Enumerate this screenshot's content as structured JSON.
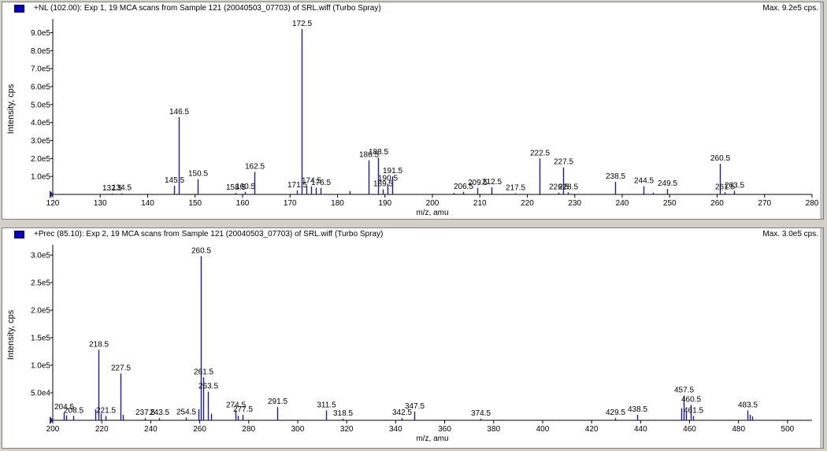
{
  "chart_data": [
    {
      "type": "bar",
      "title": "+NL (102.00): Exp 1, 19 MCA scans from Sample 121 (20040503_07703) of SRL.wiff (Turbo Spray)",
      "max_label": "Max. 9.2e5 cps.",
      "xlabel": "m/z, amu",
      "ylabel": "Intensity, cps",
      "xlim": [
        120,
        280
      ],
      "ylim": [
        0,
        950000
      ],
      "xticks": [
        120,
        130,
        140,
        150,
        160,
        170,
        180,
        190,
        200,
        210,
        220,
        230,
        240,
        250,
        260,
        270,
        280
      ],
      "yticks": [
        {
          "value": 100000,
          "label": "1.0e5"
        },
        {
          "value": 200000,
          "label": "2.0e5"
        },
        {
          "value": 300000,
          "label": "3.0e5"
        },
        {
          "value": 400000,
          "label": "4.0e5"
        },
        {
          "value": 500000,
          "label": "5.0e5"
        },
        {
          "value": 600000,
          "label": "6.0e5"
        },
        {
          "value": 700000,
          "label": "7.0e5"
        },
        {
          "value": 800000,
          "label": "8.0e5"
        },
        {
          "value": 900000,
          "label": "9.0e5"
        }
      ],
      "peaks": [
        {
          "x": 132.5,
          "y": 5000,
          "label": "132.5"
        },
        {
          "x": 134.5,
          "y": 6000,
          "label": "134.5"
        },
        {
          "x": 145.5,
          "y": 48000,
          "label": "145.5"
        },
        {
          "x": 146.5,
          "y": 430000,
          "label": "146.5"
        },
        {
          "x": 150.5,
          "y": 85000,
          "label": "150.5"
        },
        {
          "x": 158.5,
          "y": 8000,
          "label": "158.5"
        },
        {
          "x": 160.5,
          "y": 14000,
          "label": "160.5"
        },
        {
          "x": 162.5,
          "y": 125000,
          "label": "162.5"
        },
        {
          "x": 171.5,
          "y": 22000,
          "label": "171.5"
        },
        {
          "x": 172.5,
          "y": 920000,
          "label": "172.5"
        },
        {
          "x": 173.5,
          "y": 45000,
          "label": ""
        },
        {
          "x": 174.5,
          "y": 45000,
          "label": "174.5"
        },
        {
          "x": 175.5,
          "y": 38000,
          "label": ""
        },
        {
          "x": 176.5,
          "y": 36000,
          "label": "176.5"
        },
        {
          "x": 182.5,
          "y": 18000,
          "label": ""
        },
        {
          "x": 186.5,
          "y": 190000,
          "label": "186.5"
        },
        {
          "x": 188.5,
          "y": 205000,
          "label": "188.5"
        },
        {
          "x": 189.5,
          "y": 28000,
          "label": "189.5"
        },
        {
          "x": 190.5,
          "y": 60000,
          "label": "190.5"
        },
        {
          "x": 191.5,
          "y": 100000,
          "label": "191.5"
        },
        {
          "x": 204.5,
          "y": 8000,
          "label": ""
        },
        {
          "x": 206.5,
          "y": 14000,
          "label": "206.5"
        },
        {
          "x": 209.5,
          "y": 36000,
          "label": "209.5"
        },
        {
          "x": 212.5,
          "y": 40000,
          "label": "212.5"
        },
        {
          "x": 217.5,
          "y": 6000,
          "label": "217.5"
        },
        {
          "x": 222.5,
          "y": 200000,
          "label": "222.5"
        },
        {
          "x": 226.5,
          "y": 10000,
          "label": "226.5"
        },
        {
          "x": 227.5,
          "y": 150000,
          "label": "227.5"
        },
        {
          "x": 228.5,
          "y": 12000,
          "label": "228.5"
        },
        {
          "x": 238.5,
          "y": 70000,
          "label": "238.5"
        },
        {
          "x": 244.5,
          "y": 45000,
          "label": "244.5"
        },
        {
          "x": 246.5,
          "y": 10000,
          "label": ""
        },
        {
          "x": 249.5,
          "y": 30000,
          "label": "249.5"
        },
        {
          "x": 260.5,
          "y": 170000,
          "label": "260.5"
        },
        {
          "x": 261.5,
          "y": 12000,
          "label": "261.5"
        },
        {
          "x": 263.5,
          "y": 20000,
          "label": "263.5"
        }
      ]
    },
    {
      "type": "bar",
      "title": "+Prec (85.10): Exp 2, 19 MCA scans from Sample 121 (20040503_07703) of SRL.wiff (Turbo Spray)",
      "max_label": "Max. 3.0e5 cps.",
      "xlabel": "m/z, amu",
      "ylabel": "Intensity, cps",
      "xlim": [
        200,
        510
      ],
      "ylim": [
        0,
        310000
      ],
      "xticks": [
        200,
        220,
        240,
        260,
        280,
        300,
        320,
        340,
        360,
        380,
        400,
        420,
        440,
        460,
        480,
        500
      ],
      "yticks": [
        {
          "value": 50000,
          "label": "5.0e4"
        },
        {
          "value": 100000,
          "label": "1.0e5"
        },
        {
          "value": 150000,
          "label": "1.5e5"
        },
        {
          "value": 200000,
          "label": "2.0e5"
        },
        {
          "value": 250000,
          "label": "2.5e5"
        },
        {
          "value": 300000,
          "label": "3.0e5"
        }
      ],
      "peaks": [
        {
          "x": 204.5,
          "y": 14000,
          "label": "204.5"
        },
        {
          "x": 205.5,
          "y": 9000,
          "label": ""
        },
        {
          "x": 208.5,
          "y": 8000,
          "label": "208.5"
        },
        {
          "x": 217.5,
          "y": 20000,
          "label": ""
        },
        {
          "x": 218.5,
          "y": 128000,
          "label": "218.5"
        },
        {
          "x": 219.5,
          "y": 12000,
          "label": ""
        },
        {
          "x": 221.5,
          "y": 8000,
          "label": "221.5"
        },
        {
          "x": 227.5,
          "y": 85000,
          "label": "227.5"
        },
        {
          "x": 228.5,
          "y": 10000,
          "label": ""
        },
        {
          "x": 237.5,
          "y": 4000,
          "label": "237.5"
        },
        {
          "x": 243.5,
          "y": 4000,
          "label": "243.5"
        },
        {
          "x": 254.5,
          "y": 5000,
          "label": "254.5"
        },
        {
          "x": 259.5,
          "y": 20000,
          "label": ""
        },
        {
          "x": 260.5,
          "y": 298000,
          "label": "260.5"
        },
        {
          "x": 261.5,
          "y": 78000,
          "label": "261.5"
        },
        {
          "x": 263.5,
          "y": 52000,
          "label": "263.5"
        },
        {
          "x": 264.5,
          "y": 12000,
          "label": ""
        },
        {
          "x": 274.5,
          "y": 18000,
          "label": "274.5"
        },
        {
          "x": 275.5,
          "y": 8000,
          "label": ""
        },
        {
          "x": 277.5,
          "y": 10000,
          "label": "277.5"
        },
        {
          "x": 291.5,
          "y": 24000,
          "label": "291.5"
        },
        {
          "x": 311.5,
          "y": 18000,
          "label": "311.5"
        },
        {
          "x": 318.5,
          "y": 3000,
          "label": "318.5"
        },
        {
          "x": 342.5,
          "y": 4000,
          "label": "342.5"
        },
        {
          "x": 347.5,
          "y": 16000,
          "label": "347.5"
        },
        {
          "x": 374.5,
          "y": 3000,
          "label": "374.5"
        },
        {
          "x": 429.5,
          "y": 4000,
          "label": "429.5"
        },
        {
          "x": 438.5,
          "y": 10000,
          "label": "438.5"
        },
        {
          "x": 456.5,
          "y": 22000,
          "label": ""
        },
        {
          "x": 457.5,
          "y": 45000,
          "label": "457.5"
        },
        {
          "x": 458.5,
          "y": 15000,
          "label": ""
        },
        {
          "x": 460.5,
          "y": 28000,
          "label": "460.5"
        },
        {
          "x": 461.5,
          "y": 8000,
          "label": "461.5"
        },
        {
          "x": 483.5,
          "y": 18000,
          "label": "483.5"
        },
        {
          "x": 484.5,
          "y": 10000,
          "label": ""
        },
        {
          "x": 485.5,
          "y": 7000,
          "label": ""
        }
      ]
    }
  ]
}
